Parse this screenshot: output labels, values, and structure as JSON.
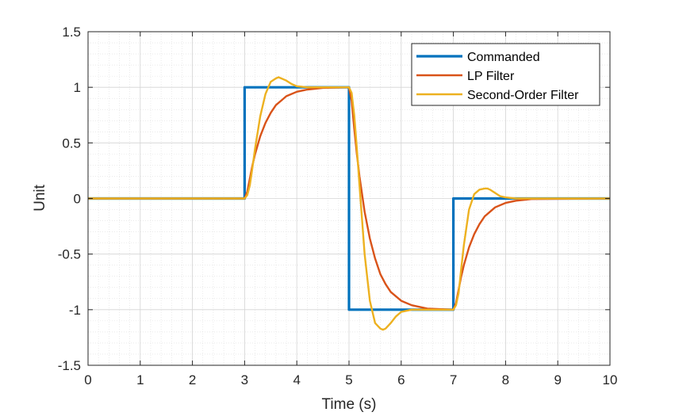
{
  "chart_data": {
    "type": "line",
    "xlabel": "Time (s)",
    "ylabel": "Unit",
    "xlim": [
      0,
      10
    ],
    "ylim": [
      -1.5,
      1.5
    ],
    "xticks": [
      0,
      1,
      2,
      3,
      4,
      5,
      6,
      7,
      8,
      9,
      10
    ],
    "xtick_labels": [
      "0",
      "1",
      "2",
      "3",
      "4",
      "5",
      "6",
      "7",
      "8",
      "9",
      "10"
    ],
    "yticks": [
      1.5,
      1,
      0.5,
      0,
      -0.5,
      -1,
      -1.5
    ],
    "ytick_labels": [
      "1.5",
      "1",
      "0.5",
      "0",
      "-0.5",
      "-1",
      "-1.5"
    ],
    "grid": true,
    "minor_grid": true,
    "legend_position": "top-right",
    "series": [
      {
        "name": "Commanded",
        "color": "#0072BD",
        "x": [
          0,
          3,
          3,
          5,
          5,
          7,
          7,
          10
        ],
        "y": [
          0,
          0,
          1,
          1,
          -1,
          -1,
          0,
          0
        ]
      },
      {
        "name": "LP Filter",
        "color": "#D95319",
        "x": [
          0,
          3,
          3.05,
          3.1,
          3.15,
          3.2,
          3.3,
          3.4,
          3.5,
          3.6,
          3.7,
          3.8,
          4.0,
          4.2,
          4.5,
          5,
          5.05,
          5.1,
          5.15,
          5.2,
          5.3,
          5.4,
          5.5,
          5.6,
          5.7,
          5.8,
          6.0,
          6.2,
          6.5,
          7,
          7.05,
          7.1,
          7.15,
          7.2,
          7.3,
          7.4,
          7.5,
          7.6,
          7.7,
          7.8,
          8.0,
          8.2,
          8.5,
          10
        ],
        "y": [
          0,
          0,
          0.06,
          0.18,
          0.3,
          0.4,
          0.56,
          0.68,
          0.77,
          0.84,
          0.88,
          0.92,
          0.96,
          0.98,
          0.995,
          1,
          0.88,
          0.63,
          0.4,
          0.2,
          -0.12,
          -0.36,
          -0.54,
          -0.68,
          -0.77,
          -0.84,
          -0.92,
          -0.96,
          -0.99,
          -1,
          -0.94,
          -0.82,
          -0.7,
          -0.6,
          -0.44,
          -0.32,
          -0.23,
          -0.16,
          -0.12,
          -0.08,
          -0.04,
          -0.02,
          -0.005,
          0
        ]
      },
      {
        "name": "Second-Order Filter",
        "color": "#EDB120",
        "x": [
          0,
          3,
          3.05,
          3.1,
          3.15,
          3.2,
          3.3,
          3.4,
          3.5,
          3.6,
          3.65,
          3.7,
          3.8,
          3.9,
          4.0,
          4.2,
          4.5,
          5,
          5.05,
          5.1,
          5.15,
          5.2,
          5.3,
          5.4,
          5.5,
          5.6,
          5.65,
          5.7,
          5.8,
          5.9,
          6.0,
          6.2,
          6.5,
          7,
          7.05,
          7.1,
          7.15,
          7.2,
          7.3,
          7.4,
          7.5,
          7.6,
          7.65,
          7.7,
          7.8,
          7.9,
          8.0,
          8.2,
          8.5,
          10
        ],
        "y": [
          0,
          0,
          0.03,
          0.12,
          0.28,
          0.45,
          0.74,
          0.94,
          1.05,
          1.08,
          1.09,
          1.08,
          1.06,
          1.03,
          1.01,
          1.0,
          1.0,
          1.0,
          0.95,
          0.75,
          0.45,
          0.12,
          -0.5,
          -0.92,
          -1.12,
          -1.17,
          -1.18,
          -1.17,
          -1.12,
          -1.06,
          -1.02,
          -1.0,
          -1.0,
          -1.0,
          -0.96,
          -0.85,
          -0.63,
          -0.42,
          -0.1,
          0.04,
          0.08,
          0.09,
          0.09,
          0.08,
          0.05,
          0.02,
          0.01,
          0.0,
          0.0,
          0
        ]
      }
    ]
  }
}
